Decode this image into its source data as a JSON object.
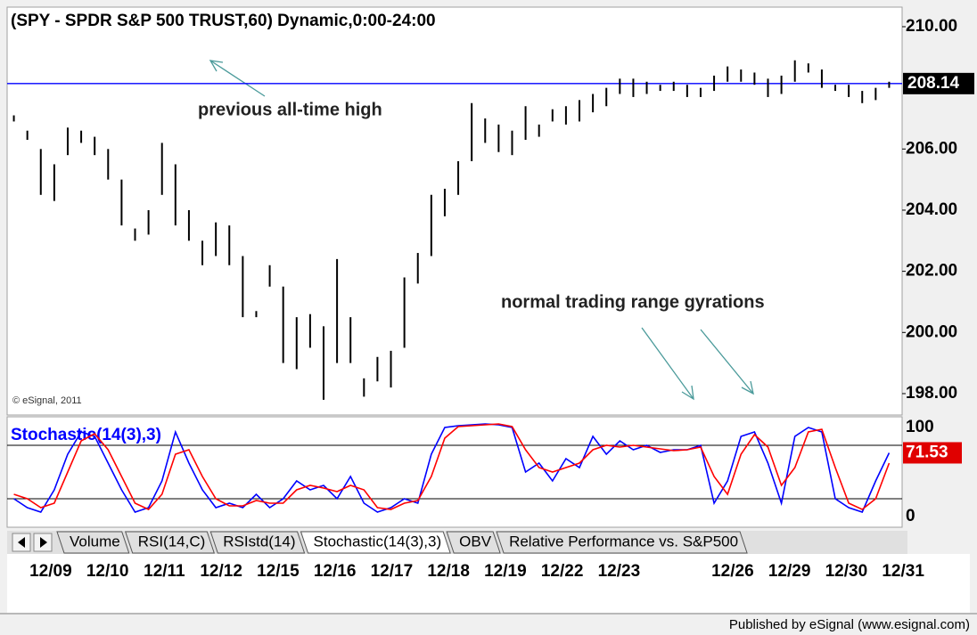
{
  "chart_data": [
    {
      "type": "ohlc",
      "title": "(SPY - SPDR S&P 500 TRUST,60) Dynamic,0:00-24:00",
      "ylim": [
        197.3,
        210.64
      ],
      "yticks": [
        {
          "value": 198,
          "label": "198.00"
        },
        {
          "value": 200,
          "label": "200.00"
        },
        {
          "value": 202,
          "label": "202.00"
        },
        {
          "value": 204,
          "label": "204.00"
        },
        {
          "value": 206,
          "label": "206.00"
        },
        {
          "value": 210,
          "label": "210.00"
        }
      ],
      "series": [
        {
          "color": "#000000",
          "high": [
            207.1,
            206.6,
            206.0,
            205.5,
            206.7,
            206.6,
            206.4,
            206.0,
            205.0,
            203.4,
            204.0,
            206.2,
            205.5,
            204.0,
            203.0,
            203.6,
            203.5,
            202.5,
            200.7,
            202.2,
            201.5,
            200.5,
            200.6,
            200.2,
            202.4,
            200.5,
            198.5,
            199.2,
            199.4,
            201.8,
            202.6,
            204.5,
            204.7,
            205.6,
            207.5,
            207.0,
            206.8,
            206.6,
            207.4,
            206.8,
            207.3,
            207.4,
            207.6,
            207.8,
            208.0,
            208.3,
            208.3,
            208.2,
            208.1,
            208.2,
            208.1,
            208.0,
            208.4,
            208.7,
            208.6,
            208.5,
            208.3,
            208.4,
            208.9,
            208.8,
            208.6,
            208.1,
            208.1,
            207.9,
            208.0,
            208.2
          ],
          "low": [
            206.9,
            206.3,
            204.5,
            204.3,
            205.8,
            206.2,
            205.8,
            205.0,
            203.5,
            203.0,
            203.2,
            204.5,
            203.5,
            203.0,
            202.2,
            202.5,
            202.2,
            200.5,
            200.5,
            201.5,
            199.0,
            198.8,
            199.5,
            197.8,
            199.0,
            199.0,
            197.9,
            198.4,
            198.2,
            199.5,
            201.6,
            202.5,
            203.8,
            204.5,
            205.6,
            206.2,
            205.9,
            205.8,
            206.3,
            206.4,
            206.9,
            206.8,
            206.9,
            207.2,
            207.4,
            207.8,
            207.7,
            207.8,
            207.9,
            207.9,
            207.7,
            207.7,
            207.9,
            208.2,
            208.2,
            208.1,
            207.7,
            207.8,
            208.2,
            208.5,
            208.0,
            207.9,
            207.7,
            207.5,
            207.6,
            208.0
          ]
        }
      ],
      "hline": {
        "value": 208.14,
        "color": "#0000ff"
      },
      "annotations": [
        "previous all-time high",
        "normal trading range gyrations",
        "© eSignal, 2011"
      ]
    },
    {
      "type": "line",
      "title": "Stochastic(14(3),3)",
      "ylim": [
        -10,
        110
      ],
      "yticks": [
        0,
        100
      ],
      "levels": [
        80,
        20
      ],
      "series": [
        {
          "color": "#0000ff",
          "values": [
            20,
            10,
            5,
            30,
            70,
            95,
            90,
            60,
            30,
            5,
            10,
            40,
            95,
            60,
            30,
            10,
            15,
            10,
            25,
            10,
            20,
            40,
            30,
            35,
            20,
            45,
            15,
            5,
            10,
            20,
            15,
            70,
            100,
            102,
            103,
            104,
            103,
            100,
            50,
            60,
            40,
            65,
            55,
            90,
            70,
            85,
            75,
            80,
            72,
            75,
            75,
            80,
            15,
            40,
            90,
            95,
            60,
            15,
            90,
            100,
            95,
            20,
            10,
            5,
            40,
            71.53
          ]
        },
        {
          "color": "#ff0000",
          "values": [
            25,
            20,
            10,
            15,
            50,
            85,
            93,
            75,
            45,
            15,
            8,
            25,
            70,
            75,
            45,
            20,
            12,
            12,
            18,
            15,
            15,
            30,
            35,
            32,
            28,
            35,
            30,
            10,
            8,
            15,
            18,
            45,
            88,
            101,
            102,
            103,
            104,
            101,
            75,
            55,
            50,
            55,
            60,
            75,
            80,
            78,
            80,
            78,
            76,
            74,
            75,
            78,
            45,
            25,
            70,
            92,
            78,
            35,
            55,
            95,
            98,
            55,
            15,
            8,
            20,
            60
          ]
        }
      ]
    }
  ],
  "date_axis": {
    "categories": [
      "12/09",
      "12/10",
      "12/11",
      "12/12",
      "12/15",
      "12/16",
      "12/17",
      "12/18",
      "12/19",
      "12/22",
      "12/23",
      null,
      "12/26",
      "12/29",
      "12/30",
      "12/31"
    ]
  },
  "tabs": {
    "items": [
      "Volume",
      "RSI(14,C)",
      "RSIstd(14)",
      "Stochastic(14(3),3)",
      "OBV",
      "Relative Performance vs. S&P500"
    ],
    "active": 3
  },
  "footer": "Published by eSignal (www.esignal.com)"
}
